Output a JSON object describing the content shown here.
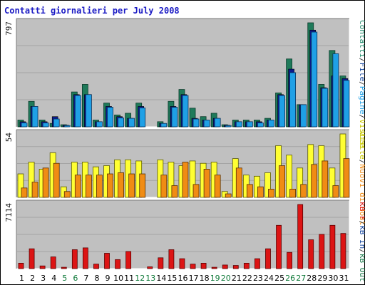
{
  "title": "Contatti giornalieri per July 2008",
  "colors": {
    "contatti": "#1f7a5a",
    "pagine": "#1fa0e6",
    "file_dark": "#0a1a8c",
    "visite": "#ffff33",
    "host": "#f08c14",
    "kbf": "#dc1414",
    "panel_bg": "#c0c0c0",
    "weekend_label": "#107a3a",
    "weekday_label": "#000000"
  },
  "chart_data": [
    {
      "type": "bar",
      "panel": "top",
      "ymax_label": "797",
      "ylim": [
        0,
        797
      ],
      "right_legend": [
        {
          "text": "Contatti",
          "color": "#1f8a6a"
        },
        {
          "text": "/",
          "color": "#444444"
        },
        {
          "text": "File",
          "color": "#1a4aa0"
        },
        {
          "text": "/",
          "color": "#444444"
        },
        {
          "text": "Pagine",
          "color": "#1fa0e6"
        },
        {
          "text": "/",
          "color": "#444444"
        },
        {
          "text": "Visite",
          "color": "#c8c800"
        }
      ],
      "series": [
        {
          "name": "Contatti",
          "values": [
            52,
            195,
            52,
            26,
            16,
            267,
            325,
            52,
            182,
            91,
            104,
            182,
            0,
            39,
            195,
            286,
            143,
            78,
            104,
            16,
            52,
            52,
            52,
            65,
            260,
            520,
            170,
            797,
            325,
            585,
            390
          ]
        },
        {
          "name": "File",
          "values": [
            39,
            156,
            39,
            78,
            13,
            247,
            247,
            39,
            156,
            78,
            65,
            156,
            0,
            26,
            156,
            247,
            65,
            52,
            65,
            13,
            39,
            39,
            39,
            52,
            247,
            442,
            170,
            741,
            300,
            390,
            370
          ]
        },
        {
          "name": "Pagine",
          "values": [
            30,
            156,
            30,
            60,
            10,
            240,
            247,
            39,
            150,
            68,
            65,
            145,
            0,
            26,
            150,
            240,
            60,
            52,
            65,
            10,
            39,
            39,
            30,
            52,
            240,
            415,
            170,
            726,
            295,
            560,
            356
          ]
        }
      ]
    },
    {
      "type": "bar",
      "panel": "middle",
      "ymax_label": "54",
      "ylim": [
        0,
        54
      ],
      "right_legend": [
        {
          "text": "Visite",
          "color": "#c8c800"
        },
        {
          "text": "/",
          "color": "#444444"
        },
        {
          "text": "Nuovi di Host",
          "color": "#f08c14"
        }
      ],
      "series": [
        {
          "name": "Visite",
          "values": [
            20,
            30,
            24,
            38,
            9,
            30,
            30,
            26,
            27,
            32,
            32,
            31,
            0,
            32,
            30,
            27,
            31,
            29,
            30,
            5,
            33,
            19,
            18,
            21,
            44,
            36,
            25,
            45,
            44,
            25,
            54
          ]
        },
        {
          "name": "Nuovi di Host",
          "values": [
            8,
            13,
            25,
            29,
            5,
            19,
            19,
            19,
            20,
            21,
            20,
            20,
            0,
            19,
            10,
            30,
            11,
            24,
            19,
            3,
            25,
            11,
            9,
            7,
            27,
            7,
            11,
            28,
            31,
            10,
            33
          ]
        }
      ]
    },
    {
      "type": "bar",
      "panel": "bottom",
      "ymax_label": "7114",
      "ylim": [
        0,
        7114
      ],
      "right_legend": [
        {
          "text": "kB F",
          "color": "#dc1414"
        },
        {
          "text": "/",
          "color": "#444444"
        },
        {
          "text": "kB In",
          "color": "#1a4aa0"
        },
        {
          "text": "/",
          "color": "#444444"
        },
        {
          "text": "kB Out",
          "color": "#1a7a4a"
        }
      ],
      "series": [
        {
          "name": "kB F",
          "values": [
            600,
            2200,
            300,
            1300,
            150,
            2100,
            2300,
            500,
            1700,
            1000,
            1900,
            0,
            200,
            1200,
            2100,
            1100,
            500,
            600,
            150,
            400,
            350,
            600,
            1100,
            2200,
            4800,
            1800,
            7114,
            3200,
            3800,
            4800,
            3900
          ]
        }
      ]
    }
  ],
  "x_labels": [
    {
      "text": "1",
      "weekend": false
    },
    {
      "text": "2",
      "weekend": false
    },
    {
      "text": "3",
      "weekend": false
    },
    {
      "text": "4",
      "weekend": false
    },
    {
      "text": "5",
      "weekend": true
    },
    {
      "text": "6",
      "weekend": true
    },
    {
      "text": "7",
      "weekend": false
    },
    {
      "text": "8",
      "weekend": false
    },
    {
      "text": "9",
      "weekend": false
    },
    {
      "text": "10",
      "weekend": false
    },
    {
      "text": "11",
      "weekend": false
    },
    {
      "text": "12",
      "weekend": true
    },
    {
      "text": "13",
      "weekend": true
    },
    {
      "text": "14",
      "weekend": false
    },
    {
      "text": "15",
      "weekend": false
    },
    {
      "text": "16",
      "weekend": false
    },
    {
      "text": "17",
      "weekend": false
    },
    {
      "text": "18",
      "weekend": false
    },
    {
      "text": "19",
      "weekend": true
    },
    {
      "text": "20",
      "weekend": true
    },
    {
      "text": "21",
      "weekend": false
    },
    {
      "text": "22",
      "weekend": false
    },
    {
      "text": "23",
      "weekend": false
    },
    {
      "text": "24",
      "weekend": false
    },
    {
      "text": "25",
      "weekend": false
    },
    {
      "text": "26",
      "weekend": true
    },
    {
      "text": "27",
      "weekend": true
    },
    {
      "text": "28",
      "weekend": false
    },
    {
      "text": "29",
      "weekend": false
    },
    {
      "text": "30",
      "weekend": false
    },
    {
      "text": "31",
      "weekend": false
    }
  ]
}
